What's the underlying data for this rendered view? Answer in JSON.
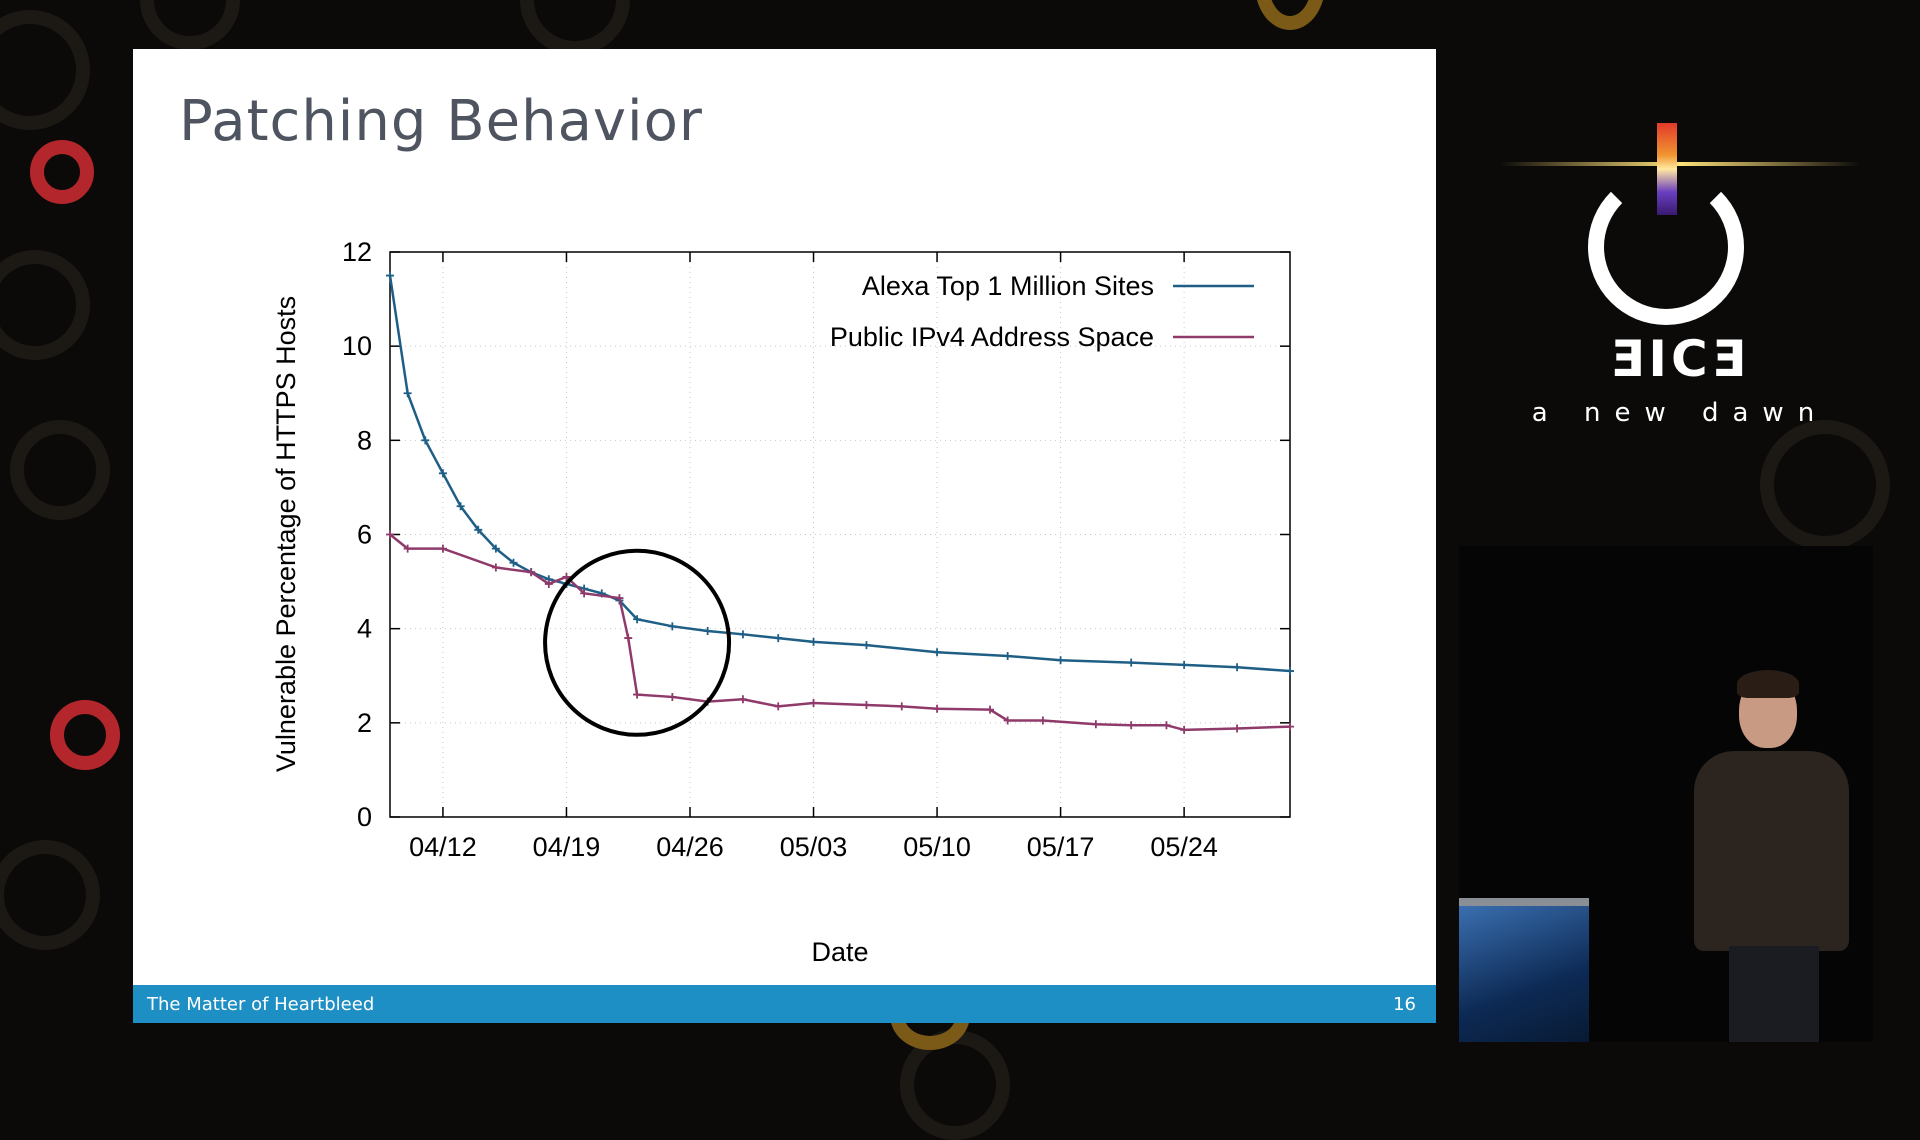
{
  "slide": {
    "title": "Patching Behavior",
    "footer_left": "The Matter of Heartbleed",
    "footer_right": "16"
  },
  "branding": {
    "logo_word": "ƎICƎ",
    "tagline": "a new dawn"
  },
  "colors": {
    "alexa_series": "#1f5f86",
    "ipv4_series": "#8f3a6a",
    "footer_bar": "#1e8fc4",
    "annotation_circle": "#000000"
  },
  "chart_data": {
    "type": "line",
    "title": "",
    "xlabel": "Date",
    "ylabel": "Vulnerable Percentage of HTTPS Hosts",
    "x_ticks": [
      "04/12",
      "04/19",
      "04/26",
      "05/03",
      "05/10",
      "05/17",
      "05/24"
    ],
    "x_tick_dates": [
      "2014-04-12",
      "2014-04-19",
      "2014-04-26",
      "2014-05-03",
      "2014-05-10",
      "2014-05-17",
      "2014-05-24"
    ],
    "xlim": [
      "2014-04-09",
      "2014-05-30"
    ],
    "ylim": [
      0,
      12
    ],
    "y_ticks": [
      "0",
      "2",
      "4",
      "6",
      "8",
      "10",
      "12"
    ],
    "grid": true,
    "legend_position": "top-right",
    "annotation": {
      "shape": "circle",
      "center_date": "2014-04-23",
      "center_y": 3.7
    },
    "series": [
      {
        "name": "Alexa Top 1 Million Sites",
        "points": [
          [
            "2014-04-09",
            11.5
          ],
          [
            "2014-04-10",
            9.0
          ],
          [
            "2014-04-11",
            8.0
          ],
          [
            "2014-04-12",
            7.3
          ],
          [
            "2014-04-13",
            6.6
          ],
          [
            "2014-04-14",
            6.1
          ],
          [
            "2014-04-15",
            5.7
          ],
          [
            "2014-04-16",
            5.4
          ],
          [
            "2014-04-17",
            5.2
          ],
          [
            "2014-04-18",
            5.05
          ],
          [
            "2014-04-19",
            4.95
          ],
          [
            "2014-04-20",
            4.85
          ],
          [
            "2014-04-21",
            4.75
          ],
          [
            "2014-04-22",
            4.6
          ],
          [
            "2014-04-23",
            4.2
          ],
          [
            "2014-04-25",
            4.05
          ],
          [
            "2014-04-27",
            3.95
          ],
          [
            "2014-04-29",
            3.88
          ],
          [
            "2014-05-01",
            3.8
          ],
          [
            "2014-05-03",
            3.72
          ],
          [
            "2014-05-06",
            3.65
          ],
          [
            "2014-05-10",
            3.5
          ],
          [
            "2014-05-14",
            3.42
          ],
          [
            "2014-05-17",
            3.33
          ],
          [
            "2014-05-21",
            3.28
          ],
          [
            "2014-05-24",
            3.23
          ],
          [
            "2014-05-27",
            3.18
          ],
          [
            "2014-05-30",
            3.1
          ]
        ]
      },
      {
        "name": "Public IPv4 Address Space",
        "points": [
          [
            "2014-04-09",
            6.0
          ],
          [
            "2014-04-10",
            5.7
          ],
          [
            "2014-04-12",
            5.7
          ],
          [
            "2014-04-15",
            5.3
          ],
          [
            "2014-04-17",
            5.2
          ],
          [
            "2014-04-18",
            4.95
          ],
          [
            "2014-04-19",
            5.1
          ],
          [
            "2014-04-20",
            4.75
          ],
          [
            "2014-04-22",
            4.65
          ],
          [
            "2014-04-22.5",
            3.8
          ],
          [
            "2014-04-23",
            2.6
          ],
          [
            "2014-04-25",
            2.55
          ],
          [
            "2014-04-27",
            2.45
          ],
          [
            "2014-04-29",
            2.5
          ],
          [
            "2014-05-01",
            2.35
          ],
          [
            "2014-05-03",
            2.42
          ],
          [
            "2014-05-06",
            2.38
          ],
          [
            "2014-05-08",
            2.35
          ],
          [
            "2014-05-10",
            2.3
          ],
          [
            "2014-05-13",
            2.28
          ],
          [
            "2014-05-14",
            2.05
          ],
          [
            "2014-05-16",
            2.05
          ],
          [
            "2014-05-19",
            1.97
          ],
          [
            "2014-05-21",
            1.95
          ],
          [
            "2014-05-23",
            1.95
          ],
          [
            "2014-05-24",
            1.85
          ],
          [
            "2014-05-27",
            1.88
          ],
          [
            "2014-05-30",
            1.92
          ]
        ]
      }
    ]
  }
}
